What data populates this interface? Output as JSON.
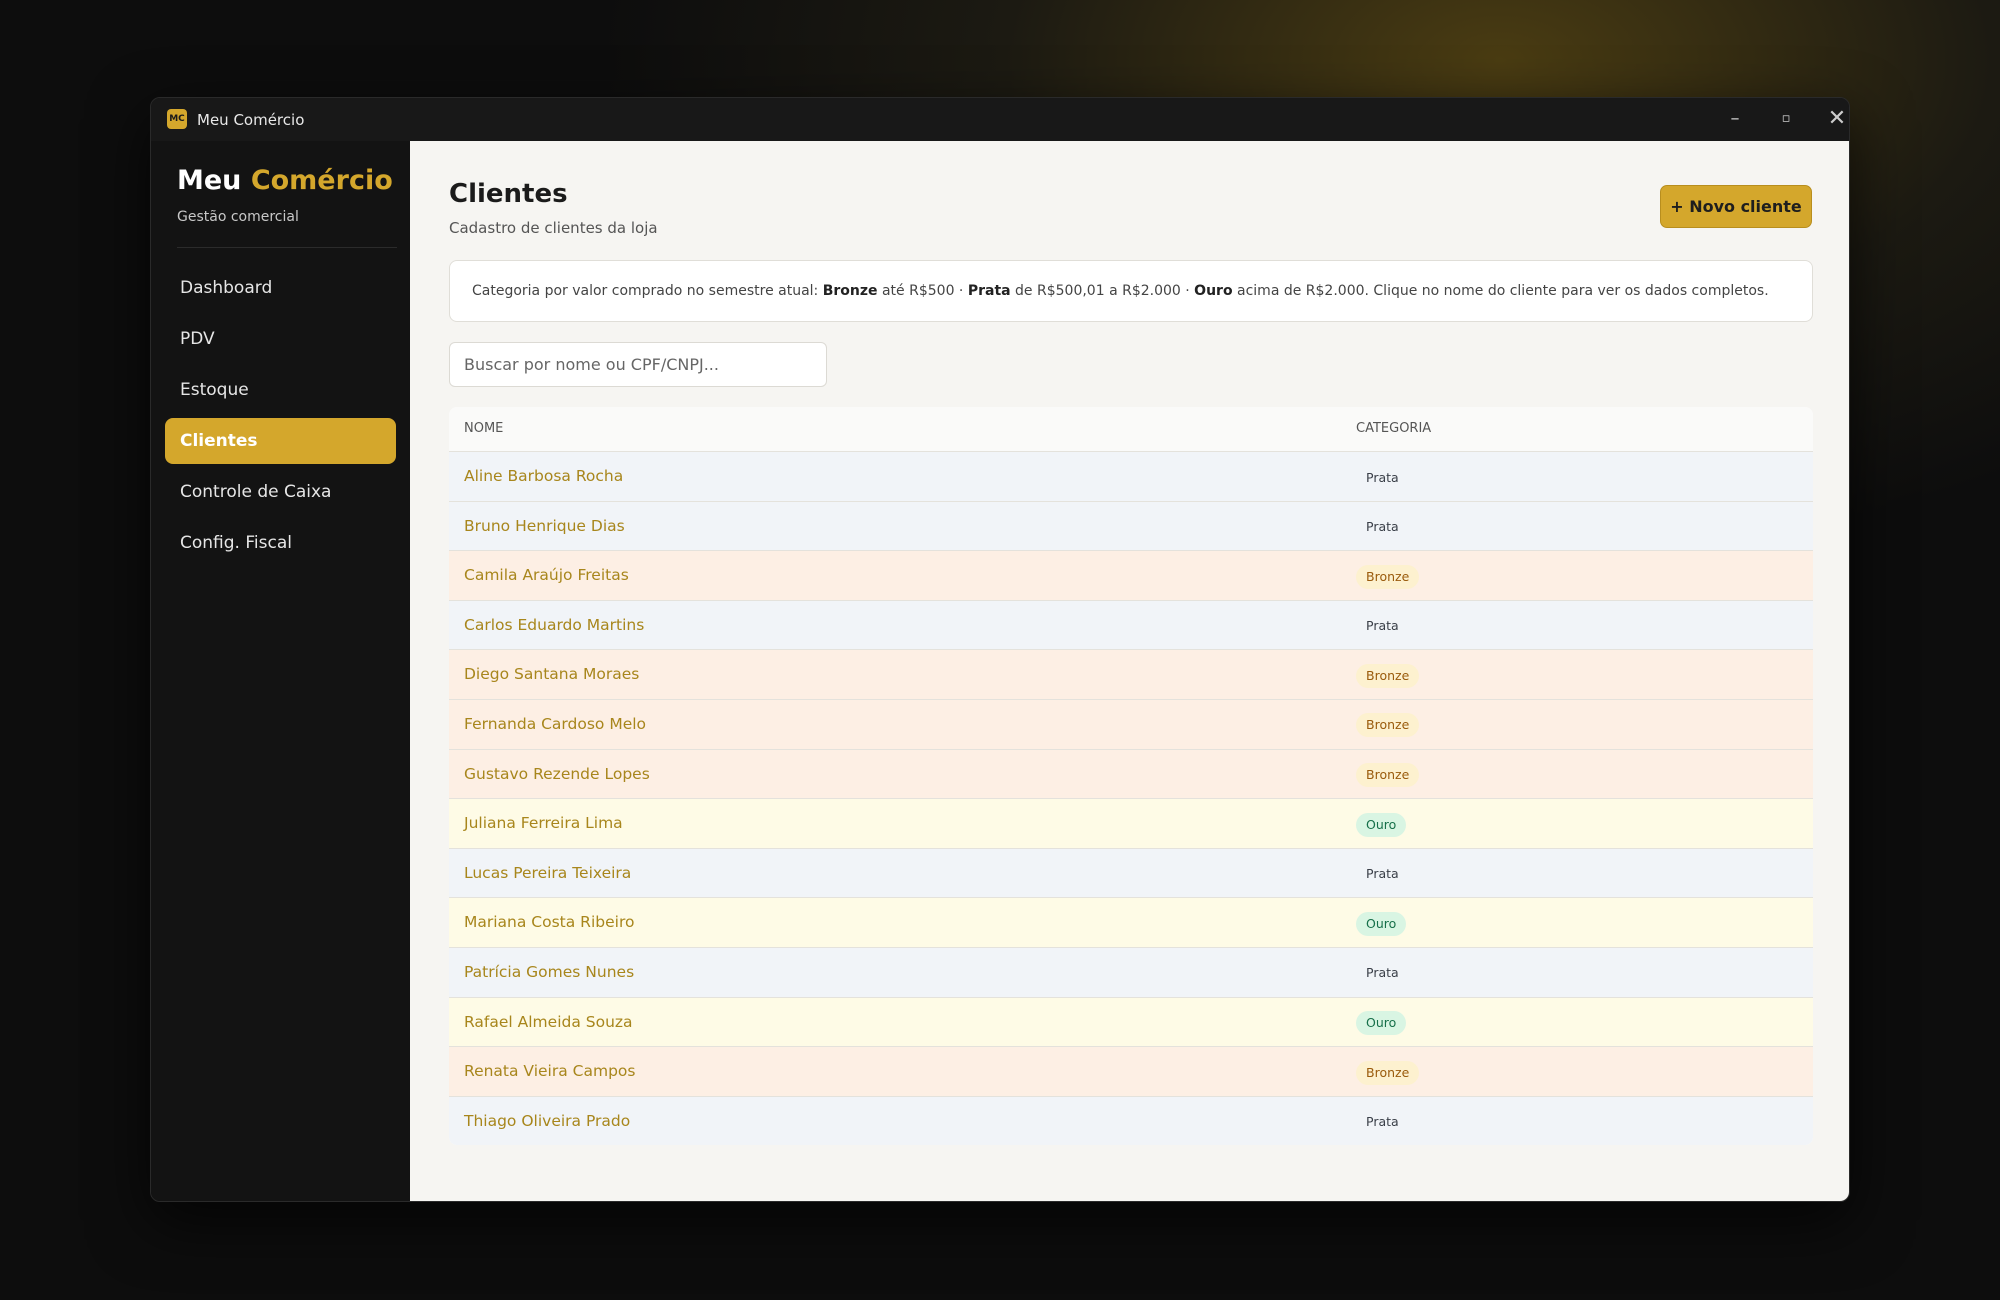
{
  "window": {
    "icon": "MC",
    "title": "Meu Comércio"
  },
  "sidebar": {
    "brand": [
      "Meu",
      "Comércio"
    ],
    "tagline": "Gestão comercial",
    "nav": [
      "Dashboard",
      "PDV",
      "Estoque",
      "Clientes",
      "Controle de Caixa",
      "Config. Fiscal"
    ],
    "active": "Clientes"
  },
  "header": {
    "title": "Clientes",
    "subtitle": "Cadastro de clientes da loja",
    "button": "+ Novo cliente"
  },
  "info": [
    "Categoria por valor comprado no semestre atual: ",
    "Bronze",
    " até R$500 · ",
    "Prata",
    " de R$500,01 a R$2.000 · ",
    "Ouro",
    " acima de R$2.000. Clique no nome do cliente para ver os dados completos."
  ],
  "search": {
    "placeholder": "Buscar por nome ou CPF/CNPJ..."
  },
  "table": {
    "columns": [
      "NOME",
      "CATEGORIA"
    ],
    "rows": [
      [
        "Aline Barbosa Rocha",
        "Prata"
      ],
      [
        "Bruno Henrique Dias",
        "Prata"
      ],
      [
        "Camila Araújo Freitas",
        "Bronze"
      ],
      [
        "Carlos Eduardo Martins",
        "Prata"
      ],
      [
        "Diego Santana Moraes",
        "Bronze"
      ],
      [
        "Fernanda Cardoso Melo",
        "Bronze"
      ],
      [
        "Gustavo Rezende Lopes",
        "Bronze"
      ],
      [
        "Juliana Ferreira Lima",
        "Ouro"
      ],
      [
        "Lucas Pereira Teixeira",
        "Prata"
      ],
      [
        "Mariana Costa Ribeiro",
        "Ouro"
      ],
      [
        "Patrícia Gomes Nunes",
        "Prata"
      ],
      [
        "Rafael Almeida Souza",
        "Ouro"
      ],
      [
        "Renata Vieira Campos",
        "Bronze"
      ],
      [
        "Thiago Oliveira Prado",
        "Prata"
      ]
    ]
  }
}
